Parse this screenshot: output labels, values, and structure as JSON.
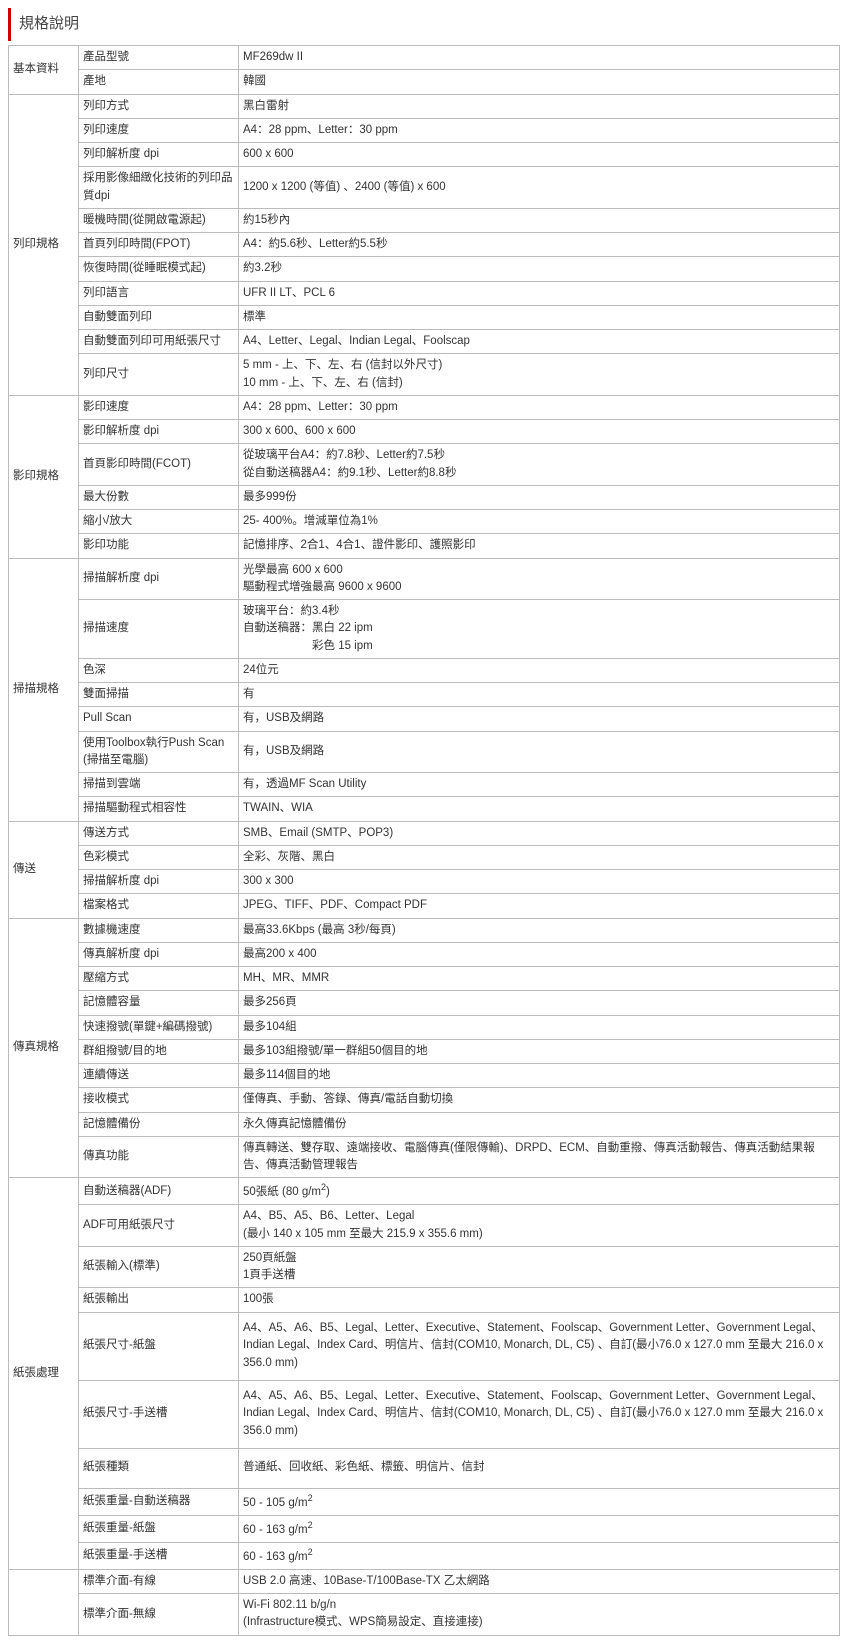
{
  "title": "規格說明",
  "sections": [
    {
      "category": "基本資料",
      "rows": [
        {
          "label": "產品型號",
          "value": "MF269dw II"
        },
        {
          "label": "產地",
          "value": "韓國"
        }
      ]
    },
    {
      "category": "列印規格",
      "rows": [
        {
          "label": "列印方式",
          "value": "黑白雷射"
        },
        {
          "label": "列印速度",
          "value": "A4：28 ppm、Letter：30 ppm"
        },
        {
          "label": "列印解析度 dpi",
          "value": "600 x 600"
        },
        {
          "label": "採用影像細緻化技術的列印品質dpi",
          "value": "1200 x 1200 (等值) 、2400 (等值) x 600"
        },
        {
          "label": "暖機時間(從開啟電源起)",
          "value": "約15秒內"
        },
        {
          "label": "首頁列印時間(FPOT)",
          "value": "A4：約5.6秒、Letter約5.5秒"
        },
        {
          "label": "恢復時間(從睡眠模式起)",
          "value": "約3.2秒"
        },
        {
          "label": "列印語言",
          "value": "UFR II LT、PCL 6"
        },
        {
          "label": "自動雙面列印",
          "value": "標準"
        },
        {
          "label": "自動雙面列印可用紙張尺寸",
          "value": "A4、Letter、Legal、Indian Legal、Foolscap"
        },
        {
          "label": "列印尺寸",
          "value": "5 mm - 上、下、左、右 (信封以外尺寸)\n10 mm - 上、下、左、右 (信封)"
        }
      ]
    },
    {
      "category": "影印規格",
      "rows": [
        {
          "label": "影印速度",
          "value": "A4：28 ppm、Letter：30 ppm"
        },
        {
          "label": "影印解析度 dpi",
          "value": "300 x 600、600 x 600"
        },
        {
          "label": "首頁影印時間(FCOT)",
          "value": "從玻璃平台A4：約7.8秒、Letter約7.5秒\n從自動送稿器A4：約9.1秒、Letter約8.8秒"
        },
        {
          "label": "最大份數",
          "value": "最多999份"
        },
        {
          "label": "縮小/放大",
          "value": "25- 400%。增減單位為1%"
        },
        {
          "label": "影印功能",
          "value": "記憶排序、2合1、4合1、證件影印、護照影印"
        }
      ]
    },
    {
      "category": "掃描規格",
      "rows": [
        {
          "label": "掃描解析度 dpi",
          "value": "光學最高 600 x 600\n驅動程式增強最高 9600 x 9600"
        },
        {
          "label": "掃描速度",
          "value": "玻璃平台：約3.4秒\n自動送稿器：黑白 22 ipm\n　　　　　　彩色 15 ipm"
        },
        {
          "label": "色深",
          "value": "24位元"
        },
        {
          "label": "雙面掃描",
          "value": "有"
        },
        {
          "label": "Pull Scan",
          "value": "有，USB及網路"
        },
        {
          "label": "使用Toolbox執行Push Scan (掃描至電腦)",
          "value": "有，USB及網路"
        },
        {
          "label": "掃描到雲端",
          "value": "有，透過MF Scan Utility"
        },
        {
          "label": "掃描驅動程式相容性",
          "value": "TWAIN、WIA"
        }
      ]
    },
    {
      "category": "傳送",
      "rows": [
        {
          "label": "傳送方式",
          "value": "SMB、Email (SMTP、POP3)"
        },
        {
          "label": "色彩模式",
          "value": "全彩、灰階、黑白"
        },
        {
          "label": "掃描解析度 dpi",
          "value": "300 x 300"
        },
        {
          "label": "檔案格式",
          "value": "JPEG、TIFF、PDF、Compact PDF"
        }
      ]
    },
    {
      "category": "傳真規格",
      "rows": [
        {
          "label": "數據機速度",
          "value": "最高33.6Kbps (最高 3秒/每頁)"
        },
        {
          "label": "傳真解析度 dpi",
          "value": "最高200 x 400"
        },
        {
          "label": "壓縮方式",
          "value": "MH、MR、MMR"
        },
        {
          "label": "記憶體容量",
          "value": "最多256頁"
        },
        {
          "label": "快速撥號(單鍵+編碼撥號)",
          "value": "最多104組"
        },
        {
          "label": "群組撥號/目的地",
          "value": "最多103組撥號/單一群組50個目的地"
        },
        {
          "label": "連續傳送",
          "value": "最多114個目的地"
        },
        {
          "label": "接收模式",
          "value": "僅傳真、手動、答錄、傳真/電話自動切換"
        },
        {
          "label": "記憶體備份",
          "value": "永久傳真記憶體備份"
        },
        {
          "label": "傳真功能",
          "value": "傳真轉送、雙存取、遠端接收、電腦傳真(僅限傳輸)、DRPD、ECM、自動重撥、傳真活動報告、傳真活動結果報告、傳真活動管理報告"
        }
      ]
    },
    {
      "category": "紙張處理",
      "rows": [
        {
          "label": "自動送稿器(ADF)",
          "value": "50張紙 (80 g/m²)"
        },
        {
          "label": "ADF可用紙張尺寸",
          "value": "A4、B5、A5、B6、Letter、Legal\n(最小 140 x 105 mm 至最大 215.9 x 355.6 mm)"
        },
        {
          "label": "紙張輸入(標準)",
          "value": "250頁紙盤\n1頁手送槽"
        },
        {
          "label": "紙張輸出",
          "value": "100張"
        },
        {
          "label": "紙張尺寸-紙盤",
          "value": "A4、A5、A6、B5、Legal、Letter、Executive、Statement、Foolscap、Government Letter、Government Legal、Indian Legal、Index Card、明信片、信封(COM10, Monarch, DL, C5) 、自訂(最小76.0 x 127.0 mm 至最大 216.0 x 356.0 mm)",
          "tall": true
        },
        {
          "label": "紙張尺寸-手送槽",
          "value": "A4、A5、A6、B5、Legal、Letter、Executive、Statement、Foolscap、Government Letter、Government Legal、Indian Legal、Index Card、明信片、信封(COM10, Monarch, DL, C5) 、自訂(最小76.0 x 127.0 mm 至最大 216.0 x 356.0 mm)",
          "tall": true
        },
        {
          "label": "紙張種類",
          "value": "普通紙、回收紙、彩色紙、標籤、明信片、信封",
          "tall2": true
        },
        {
          "label": "紙張重量-自動送稿器",
          "value": "50 - 105 g/m²"
        },
        {
          "label": "紙張重量-紙盤",
          "value": "60 - 163 g/m²"
        },
        {
          "label": "紙張重量-手送槽",
          "value": "60 - 163 g/m²"
        }
      ]
    },
    {
      "category": "",
      "rows": [
        {
          "label": "標準介面-有線",
          "value": "USB 2.0 高速、10Base-T/100Base-TX 乙太網路"
        },
        {
          "label": "標準介面-無線",
          "value": "Wi-Fi  802.11 b/g/n\n(Infrastructure模式、WPS簡易設定、直接連接)"
        }
      ]
    }
  ]
}
